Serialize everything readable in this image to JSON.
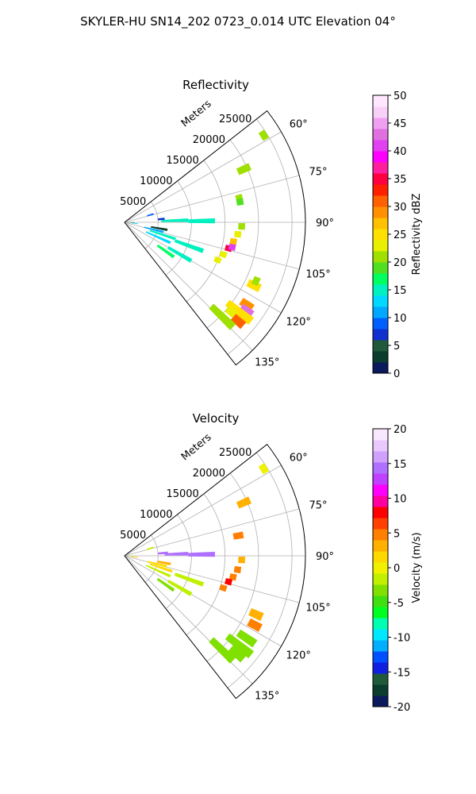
{
  "figure": {
    "suptitle": "SKYLER-HU  SN14_202  0723_0.014 UTC Elevation 04°"
  },
  "chart_data": [
    {
      "type": "heatmap",
      "title": "Reflectivity",
      "range_label": "Meters",
      "range_ticks": [
        5000,
        10000,
        15000,
        20000,
        25000
      ],
      "range_max_m": 27000,
      "azimuth_ticks": [
        "60°",
        "75°",
        "90°",
        "105°",
        "120°",
        "135°"
      ],
      "azimuth_range_deg": [
        52,
        142
      ],
      "grid": true,
      "colorbar": {
        "label": "Reflectivity dBZ",
        "ticks": [
          0,
          5,
          10,
          15,
          20,
          25,
          30,
          35,
          40,
          45,
          50
        ],
        "vmin": 0,
        "vmax": 50
      },
      "cells": [
        {
          "az": 74,
          "r0": 3500,
          "r1": 4500,
          "v": 9
        },
        {
          "az": 85,
          "r0": 5000,
          "r1": 6000,
          "v": 6
        },
        {
          "az": 88,
          "r0": 5500,
          "r1": 9500,
          "v": 15
        },
        {
          "az": 89,
          "r0": 9500,
          "r1": 13500,
          "v": 15
        },
        {
          "az": 92,
          "r0": 500,
          "r1": 1500,
          "v": 4
        },
        {
          "az": 96,
          "r0": 1000,
          "r1": 2000,
          "v": 13
        },
        {
          "az": 100,
          "r0": 4000,
          "r1": 6500,
          "v": 3
        },
        {
          "az": 104,
          "r0": 3000,
          "r1": 6000,
          "v": 10
        },
        {
          "az": 108,
          "r0": 4000,
          "r1": 8000,
          "v": 14
        },
        {
          "az": 114,
          "r0": 3500,
          "r1": 7500,
          "v": 13
        },
        {
          "az": 110,
          "r0": 8000,
          "r1": 12500,
          "v": 15
        },
        {
          "az": 120,
          "r0": 7500,
          "r1": 11500,
          "v": 15
        },
        {
          "az": 125,
          "r0": 6000,
          "r1": 9000,
          "v": 16
        },
        {
          "az": 66,
          "r0": 18500,
          "r1": 20500,
          "v": 21
        },
        {
          "az": 58,
          "r0": 24000,
          "r1": 25000,
          "v": 20
        },
        {
          "az": 78,
          "r0": 17000,
          "r1": 18000,
          "v": 20
        },
        {
          "az": 80,
          "r0": 17000,
          "r1": 18000,
          "v": 18
        },
        {
          "az": 92,
          "r0": 17000,
          "r1": 18000,
          "v": 20
        },
        {
          "az": 96,
          "r0": 16500,
          "r1": 17500,
          "v": 22
        },
        {
          "az": 100,
          "r0": 16000,
          "r1": 17000,
          "v": 26
        },
        {
          "az": 104,
          "r0": 15500,
          "r1": 16500,
          "v": 35
        },
        {
          "az": 103,
          "r0": 16000,
          "r1": 17000,
          "v": 41
        },
        {
          "az": 108,
          "r0": 15000,
          "r1": 16000,
          "v": 22
        },
        {
          "az": 112,
          "r0": 14500,
          "r1": 15500,
          "v": 23
        },
        {
          "az": 116,
          "r0": 20500,
          "r1": 22500,
          "v": 24
        },
        {
          "az": 114,
          "r0": 21000,
          "r1": 22000,
          "v": 21
        },
        {
          "az": 124,
          "r0": 21000,
          "r1": 23000,
          "v": 28
        },
        {
          "az": 126,
          "r0": 21500,
          "r1": 23500,
          "v": 43
        },
        {
          "az": 128,
          "r0": 19500,
          "r1": 24000,
          "v": 24
        },
        {
          "az": 131,
          "r0": 21500,
          "r1": 23500,
          "v": 30
        },
        {
          "az": 130,
          "r0": 20000,
          "r1": 21500,
          "v": 22
        },
        {
          "az": 134,
          "r0": 18000,
          "r1": 22500,
          "v": 21
        }
      ]
    },
    {
      "type": "heatmap",
      "title": "Velocity",
      "range_label": "Meters",
      "range_ticks": [
        5000,
        10000,
        15000,
        20000,
        25000
      ],
      "range_max_m": 27000,
      "azimuth_ticks": [
        "60°",
        "75°",
        "90°",
        "105°",
        "120°",
        "135°"
      ],
      "azimuth_range_deg": [
        52,
        142
      ],
      "grid": true,
      "colorbar": {
        "label": "Velocity (m/s)",
        "ticks": [
          -20,
          -15,
          -10,
          -5,
          0,
          5,
          10,
          15,
          20
        ],
        "vmin": -20,
        "vmax": 20
      },
      "cells": [
        {
          "az": 74,
          "r0": 3500,
          "r1": 4500,
          "v": -2
        },
        {
          "az": 86,
          "r0": 5000,
          "r1": 6500,
          "v": 14
        },
        {
          "az": 88,
          "r0": 6000,
          "r1": 9500,
          "v": 14
        },
        {
          "az": 89,
          "r0": 9500,
          "r1": 13500,
          "v": 14
        },
        {
          "az": 92,
          "r0": 0,
          "r1": 1500,
          "v": -1
        },
        {
          "az": 97,
          "r0": 1000,
          "r1": 2000,
          "v": 3
        },
        {
          "az": 100,
          "r0": 5000,
          "r1": 7000,
          "v": 3
        },
        {
          "az": 104,
          "r0": 3500,
          "r1": 6500,
          "v": 2
        },
        {
          "az": 108,
          "r0": 4000,
          "r1": 7500,
          "v": 1
        },
        {
          "az": 114,
          "r0": 3500,
          "r1": 7500,
          "v": -2
        },
        {
          "az": 110,
          "r0": 8000,
          "r1": 12500,
          "v": -1
        },
        {
          "az": 120,
          "r0": 7500,
          "r1": 11500,
          "v": -2
        },
        {
          "az": 125,
          "r0": 6000,
          "r1": 9000,
          "v": -3
        },
        {
          "az": 66,
          "r0": 18500,
          "r1": 20500,
          "v": 3
        },
        {
          "az": 58,
          "r0": 24000,
          "r1": 25000,
          "v": 0
        },
        {
          "az": 80,
          "r0": 16500,
          "r1": 18000,
          "v": 4
        },
        {
          "az": 92,
          "r0": 17000,
          "r1": 18000,
          "v": 3
        },
        {
          "az": 97,
          "r0": 16500,
          "r1": 17500,
          "v": 4
        },
        {
          "az": 101,
          "r0": 16000,
          "r1": 17000,
          "v": 5
        },
        {
          "az": 104,
          "r0": 15500,
          "r1": 16500,
          "v": 8
        },
        {
          "az": 108,
          "r0": 15000,
          "r1": 16000,
          "v": 4
        },
        {
          "az": 114,
          "r0": 20500,
          "r1": 22500,
          "v": 3
        },
        {
          "az": 118,
          "r0": 21000,
          "r1": 23000,
          "v": 4
        },
        {
          "az": 124,
          "r0": 20500,
          "r1": 23500,
          "v": -3
        },
        {
          "az": 128,
          "r0": 19500,
          "r1": 24000,
          "v": -3
        },
        {
          "az": 131,
          "r0": 21000,
          "r1": 23500,
          "v": -4
        },
        {
          "az": 134,
          "r0": 18000,
          "r1": 22500,
          "v": -3
        }
      ]
    }
  ]
}
